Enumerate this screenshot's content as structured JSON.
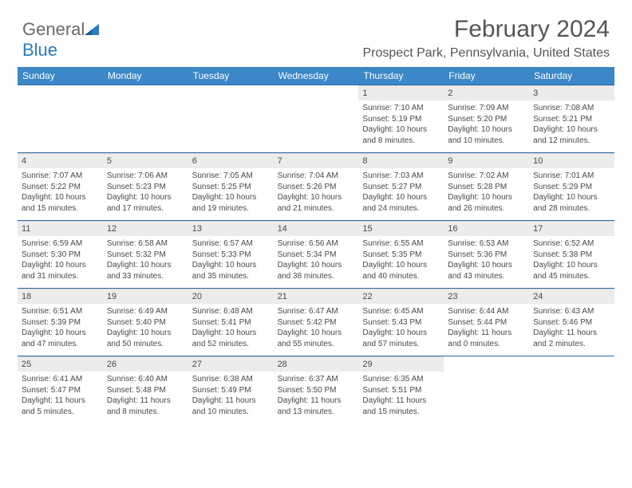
{
  "logo": {
    "text1": "General",
    "text2": "Blue"
  },
  "header": {
    "month": "February 2024",
    "location": "Prospect Park, Pennsylvania, United States"
  },
  "colors": {
    "header_bg": "#3b87c8",
    "header_text": "#ffffff",
    "daynum_bg": "#ececec",
    "body_text": "#494949",
    "rule": "#2a6aa6",
    "logo_gray": "#6a6a6a",
    "logo_blue": "#2a7bbf"
  },
  "day_names": [
    "Sunday",
    "Monday",
    "Tuesday",
    "Wednesday",
    "Thursday",
    "Friday",
    "Saturday"
  ],
  "weeks": [
    [
      {
        "empty": true
      },
      {
        "empty": true
      },
      {
        "empty": true
      },
      {
        "empty": true
      },
      {
        "n": "1",
        "sr": "Sunrise: 7:10 AM",
        "ss": "Sunset: 5:19 PM",
        "dl": "Daylight: 10 hours and 8 minutes."
      },
      {
        "n": "2",
        "sr": "Sunrise: 7:09 AM",
        "ss": "Sunset: 5:20 PM",
        "dl": "Daylight: 10 hours and 10 minutes."
      },
      {
        "n": "3",
        "sr": "Sunrise: 7:08 AM",
        "ss": "Sunset: 5:21 PM",
        "dl": "Daylight: 10 hours and 12 minutes."
      }
    ],
    [
      {
        "n": "4",
        "sr": "Sunrise: 7:07 AM",
        "ss": "Sunset: 5:22 PM",
        "dl": "Daylight: 10 hours and 15 minutes."
      },
      {
        "n": "5",
        "sr": "Sunrise: 7:06 AM",
        "ss": "Sunset: 5:23 PM",
        "dl": "Daylight: 10 hours and 17 minutes."
      },
      {
        "n": "6",
        "sr": "Sunrise: 7:05 AM",
        "ss": "Sunset: 5:25 PM",
        "dl": "Daylight: 10 hours and 19 minutes."
      },
      {
        "n": "7",
        "sr": "Sunrise: 7:04 AM",
        "ss": "Sunset: 5:26 PM",
        "dl": "Daylight: 10 hours and 21 minutes."
      },
      {
        "n": "8",
        "sr": "Sunrise: 7:03 AM",
        "ss": "Sunset: 5:27 PM",
        "dl": "Daylight: 10 hours and 24 minutes."
      },
      {
        "n": "9",
        "sr": "Sunrise: 7:02 AM",
        "ss": "Sunset: 5:28 PM",
        "dl": "Daylight: 10 hours and 26 minutes."
      },
      {
        "n": "10",
        "sr": "Sunrise: 7:01 AM",
        "ss": "Sunset: 5:29 PM",
        "dl": "Daylight: 10 hours and 28 minutes."
      }
    ],
    [
      {
        "n": "11",
        "sr": "Sunrise: 6:59 AM",
        "ss": "Sunset: 5:30 PM",
        "dl": "Daylight: 10 hours and 31 minutes."
      },
      {
        "n": "12",
        "sr": "Sunrise: 6:58 AM",
        "ss": "Sunset: 5:32 PM",
        "dl": "Daylight: 10 hours and 33 minutes."
      },
      {
        "n": "13",
        "sr": "Sunrise: 6:57 AM",
        "ss": "Sunset: 5:33 PM",
        "dl": "Daylight: 10 hours and 35 minutes."
      },
      {
        "n": "14",
        "sr": "Sunrise: 6:56 AM",
        "ss": "Sunset: 5:34 PM",
        "dl": "Daylight: 10 hours and 38 minutes."
      },
      {
        "n": "15",
        "sr": "Sunrise: 6:55 AM",
        "ss": "Sunset: 5:35 PM",
        "dl": "Daylight: 10 hours and 40 minutes."
      },
      {
        "n": "16",
        "sr": "Sunrise: 6:53 AM",
        "ss": "Sunset: 5:36 PM",
        "dl": "Daylight: 10 hours and 43 minutes."
      },
      {
        "n": "17",
        "sr": "Sunrise: 6:52 AM",
        "ss": "Sunset: 5:38 PM",
        "dl": "Daylight: 10 hours and 45 minutes."
      }
    ],
    [
      {
        "n": "18",
        "sr": "Sunrise: 6:51 AM",
        "ss": "Sunset: 5:39 PM",
        "dl": "Daylight: 10 hours and 47 minutes."
      },
      {
        "n": "19",
        "sr": "Sunrise: 6:49 AM",
        "ss": "Sunset: 5:40 PM",
        "dl": "Daylight: 10 hours and 50 minutes."
      },
      {
        "n": "20",
        "sr": "Sunrise: 6:48 AM",
        "ss": "Sunset: 5:41 PM",
        "dl": "Daylight: 10 hours and 52 minutes."
      },
      {
        "n": "21",
        "sr": "Sunrise: 6:47 AM",
        "ss": "Sunset: 5:42 PM",
        "dl": "Daylight: 10 hours and 55 minutes."
      },
      {
        "n": "22",
        "sr": "Sunrise: 6:45 AM",
        "ss": "Sunset: 5:43 PM",
        "dl": "Daylight: 10 hours and 57 minutes."
      },
      {
        "n": "23",
        "sr": "Sunrise: 6:44 AM",
        "ss": "Sunset: 5:44 PM",
        "dl": "Daylight: 11 hours and 0 minutes."
      },
      {
        "n": "24",
        "sr": "Sunrise: 6:43 AM",
        "ss": "Sunset: 5:46 PM",
        "dl": "Daylight: 11 hours and 2 minutes."
      }
    ],
    [
      {
        "n": "25",
        "sr": "Sunrise: 6:41 AM",
        "ss": "Sunset: 5:47 PM",
        "dl": "Daylight: 11 hours and 5 minutes."
      },
      {
        "n": "26",
        "sr": "Sunrise: 6:40 AM",
        "ss": "Sunset: 5:48 PM",
        "dl": "Daylight: 11 hours and 8 minutes."
      },
      {
        "n": "27",
        "sr": "Sunrise: 6:38 AM",
        "ss": "Sunset: 5:49 PM",
        "dl": "Daylight: 11 hours and 10 minutes."
      },
      {
        "n": "28",
        "sr": "Sunrise: 6:37 AM",
        "ss": "Sunset: 5:50 PM",
        "dl": "Daylight: 11 hours and 13 minutes."
      },
      {
        "n": "29",
        "sr": "Sunrise: 6:35 AM",
        "ss": "Sunset: 5:51 PM",
        "dl": "Daylight: 11 hours and 15 minutes."
      },
      {
        "empty": true
      },
      {
        "empty": true
      }
    ]
  ]
}
